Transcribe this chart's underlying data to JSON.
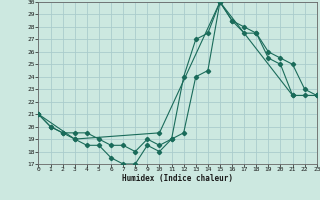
{
  "xlabel": "Humidex (Indice chaleur)",
  "bg_color": "#cce8e0",
  "grid_color": "#aacccc",
  "line_color": "#1a6b5a",
  "x_min": 0,
  "x_max": 23,
  "y_min": 17,
  "y_max": 30,
  "line1_x": [
    0,
    1,
    2,
    3,
    4,
    5,
    6,
    7,
    8,
    9,
    10,
    11,
    12,
    13,
    14,
    15,
    16,
    17,
    18,
    19,
    20,
    21,
    22,
    23
  ],
  "line1_y": [
    21,
    20,
    19.5,
    19,
    18.5,
    18.5,
    17.5,
    17,
    17,
    18.5,
    18,
    19,
    24,
    27,
    27.5,
    30,
    28.5,
    27.5,
    27.5,
    25.5,
    25,
    22.5,
    22.5,
    22.5
  ],
  "line2_x": [
    0,
    1,
    2,
    3,
    4,
    5,
    6,
    7,
    8,
    9,
    10,
    11,
    12,
    13,
    14,
    15,
    16,
    17,
    18,
    19,
    20,
    21,
    22,
    23
  ],
  "line2_y": [
    21,
    20,
    19.5,
    19.5,
    19.5,
    19,
    18.5,
    18.5,
    18,
    19,
    18.5,
    19,
    19.5,
    24,
    24.5,
    30,
    28.5,
    28,
    27.5,
    26,
    25.5,
    25,
    23,
    22.5
  ],
  "line3_x": [
    0,
    3,
    10,
    15,
    21,
    23
  ],
  "line3_y": [
    21,
    19,
    19.5,
    30,
    22.5,
    22.5
  ]
}
